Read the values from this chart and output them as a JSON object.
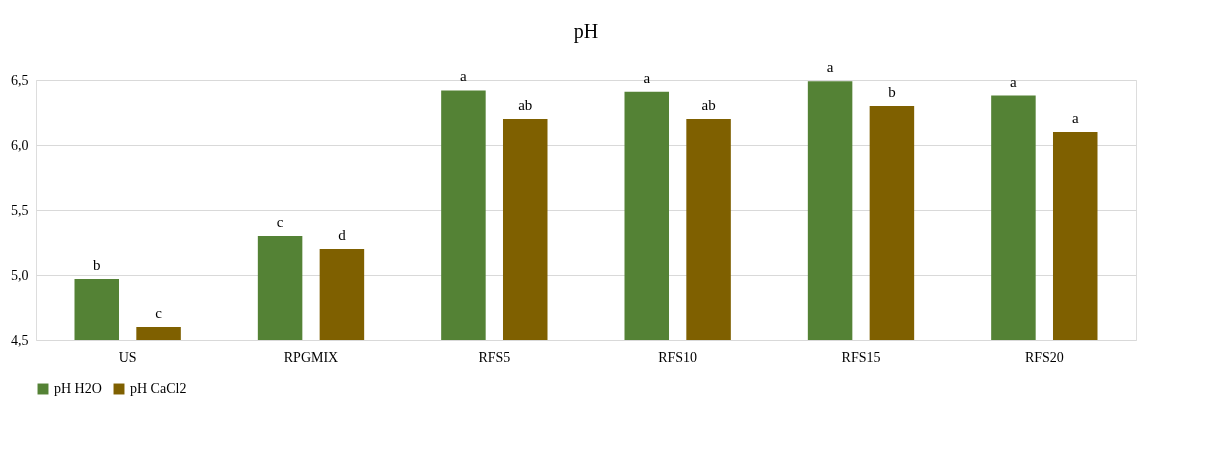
{
  "chart_data": {
    "type": "bar",
    "title": "pH",
    "categories": [
      "US",
      "RPGMIX",
      "RFS5",
      "RFS10",
      "RFS15",
      "RFS20"
    ],
    "series": [
      {
        "name": "pH H2O",
        "color": "#548235",
        "values": [
          4.97,
          5.3,
          6.42,
          6.41,
          6.49,
          6.38
        ],
        "value_labels": [
          "b",
          "c",
          "a",
          "a",
          "a",
          "a"
        ]
      },
      {
        "name": "pH CaCl2",
        "color": "#7f6000",
        "values": [
          4.6,
          5.2,
          6.2,
          6.2,
          6.3,
          6.1
        ],
        "value_labels": [
          "c",
          "d",
          "ab",
          "ab",
          "b",
          "a"
        ]
      }
    ],
    "ylim": [
      4.5,
      6.5
    ],
    "yticks": [
      {
        "value": 4.5,
        "label": "4,5"
      },
      {
        "value": 5.0,
        "label": "5,0"
      },
      {
        "value": 5.5,
        "label": "5,5"
      },
      {
        "value": 6.0,
        "label": "6,0"
      },
      {
        "value": 6.5,
        "label": "6,5"
      }
    ],
    "grid": "y",
    "legend": "bottom"
  }
}
